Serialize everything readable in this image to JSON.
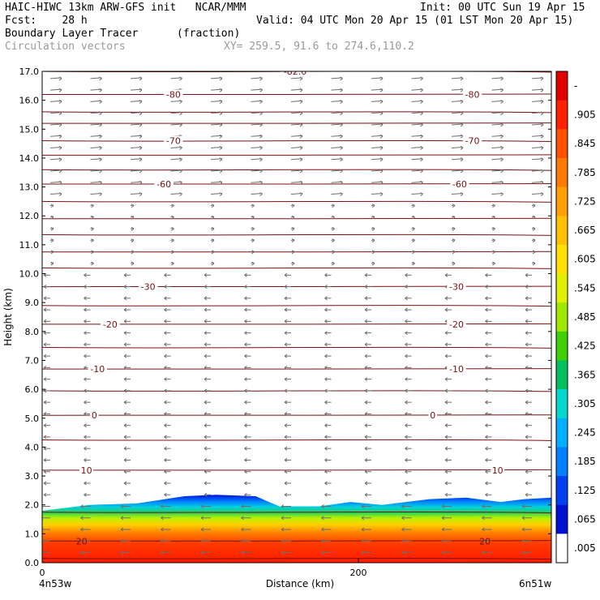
{
  "header": {
    "line1_left": "HAIC-HIWC 13km ARW-GFS init   NCAR/MMM",
    "line1_right": "Init: 00 UTC Sun 19 Apr 15",
    "line2_left": "Fcst:    28 h",
    "line2_right": "Valid: 04 UTC Mon 20 Apr 15 (01 LST Mon 20 Apr 15)",
    "line3_left": "Boundary Layer Tracer",
    "line3_mid": "(fraction)",
    "line4_left": "Circulation vectors",
    "line4_mid": "XY= 259.5, 91.6 to 274.6,110.2"
  },
  "chart_data": {
    "type": "heatmap",
    "ylabel": "Height (km)",
    "xlabel": "Distance (km)",
    "ylim": [
      0,
      17
    ],
    "xlim": [
      0,
      322
    ],
    "y_ticks": [
      "0.0",
      "1.0",
      "2.0",
      "3.0",
      "4.0",
      "5.0",
      "6.0",
      "7.0",
      "8.0",
      "9.0",
      "10.0",
      "11.0",
      "12.0",
      "13.0",
      "14.0",
      "15.0",
      "16.0",
      "17.0"
    ],
    "x_ticks": [
      {
        "value": 0,
        "label": "0"
      },
      {
        "value": 200,
        "label": "200"
      }
    ],
    "endpoint_labels": {
      "left": "4n53w",
      "right": "6n51w"
    },
    "colorbar": {
      "labels": [
        "-",
        ".905",
        ".845",
        ".785",
        ".725",
        ".665",
        ".605",
        ".545",
        ".485",
        ".425",
        ".365",
        ".305",
        ".245",
        ".185",
        ".125",
        ".065",
        ".005"
      ],
      "colors": [
        "#e00000",
        "#ff2000",
        "#ff5000",
        "#ff7a00",
        "#ffa000",
        "#ffc000",
        "#ffe000",
        "#e0f000",
        "#a0e800",
        "#40d000",
        "#00c060",
        "#00d8d0",
        "#00b0ff",
        "#0080ff",
        "#0040f0",
        "#0010d0",
        "#ffffff"
      ]
    },
    "tracer_top_profile": [
      {
        "x": 0,
        "z": 1.8
      },
      {
        "x": 30,
        "z": 2.0
      },
      {
        "x": 60,
        "z": 2.05
      },
      {
        "x": 90,
        "z": 2.3
      },
      {
        "x": 110,
        "z": 2.35
      },
      {
        "x": 135,
        "z": 2.3
      },
      {
        "x": 150,
        "z": 1.95
      },
      {
        "x": 175,
        "z": 1.95
      },
      {
        "x": 195,
        "z": 2.1
      },
      {
        "x": 215,
        "z": 2.0
      },
      {
        "x": 245,
        "z": 2.2
      },
      {
        "x": 268,
        "z": 2.25
      },
      {
        "x": 290,
        "z": 2.1
      },
      {
        "x": 305,
        "z": 2.2
      },
      {
        "x": 322,
        "z": 2.25
      }
    ],
    "contour_labels": [
      {
        "text": "-82.0",
        "x": 160,
        "z": 17.0
      },
      {
        "text": "-80",
        "x": 83,
        "z": 16.2
      },
      {
        "text": "-80",
        "x": 272,
        "z": 16.2
      },
      {
        "text": "-70",
        "x": 83,
        "z": 14.6
      },
      {
        "text": "-70",
        "x": 272,
        "z": 14.6
      },
      {
        "text": "-60",
        "x": 77,
        "z": 13.1
      },
      {
        "text": "-60",
        "x": 264,
        "z": 13.1
      },
      {
        "text": "-30",
        "x": 67,
        "z": 9.55
      },
      {
        "text": "-30",
        "x": 262,
        "z": 9.55
      },
      {
        "text": "-20",
        "x": 43,
        "z": 8.25
      },
      {
        "text": "-20",
        "x": 262,
        "z": 8.25
      },
      {
        "text": "-10",
        "x": 35,
        "z": 6.7
      },
      {
        "text": "-10",
        "x": 262,
        "z": 6.7
      },
      {
        "text": "0",
        "x": 33,
        "z": 5.1
      },
      {
        "text": "0",
        "x": 247,
        "z": 5.1
      },
      {
        "text": "10",
        "x": 28,
        "z": 3.2
      },
      {
        "text": "10",
        "x": 288,
        "z": 3.2
      },
      {
        "text": "20",
        "x": 25,
        "z": 0.75
      },
      {
        "text": "20",
        "x": 280,
        "z": 0.75
      }
    ],
    "contour_levels_z": [
      0.15,
      0.75,
      1.75,
      3.2,
      4.25,
      5.1,
      5.95,
      6.7,
      7.45,
      8.25,
      8.9,
      9.55,
      10.2,
      10.75,
      11.35,
      11.9,
      12.5,
      13.1,
      13.6,
      14.1,
      14.6,
      15.2,
      15.6,
      16.2,
      17.0
    ]
  }
}
